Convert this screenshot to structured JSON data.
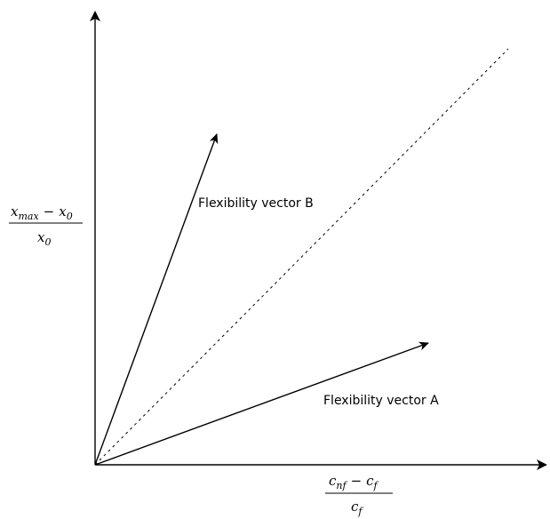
{
  "diagram": {
    "vector_a_label": "Flexibility vector A",
    "vector_b_label": "Flexibility vector B",
    "y_axis_label": {
      "numerator": {
        "var1": "x",
        "sub1": "max",
        "op": "−",
        "var2": "x",
        "sub2": "0"
      },
      "denominator": {
        "var": "x",
        "sub": "0"
      }
    },
    "x_axis_label": {
      "numerator": {
        "var1": "c",
        "sub1": "nf",
        "op": "−",
        "var2": "c",
        "sub2": "f"
      },
      "denominator": {
        "var": "c",
        "sub": "f"
      }
    },
    "line_color": "#000000"
  }
}
